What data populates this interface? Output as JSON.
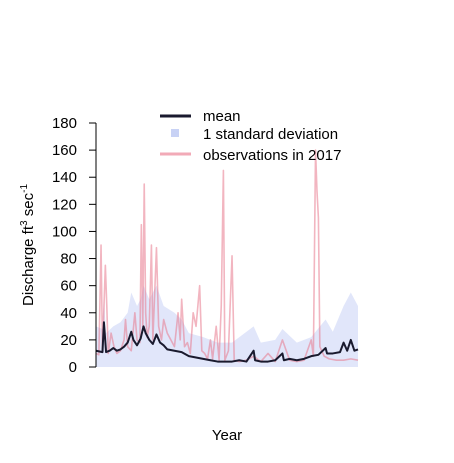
{
  "chart_data": {
    "type": "line",
    "xlabel": "Year",
    "ylabel_main": "Discharge ft",
    "ylabel_sup1": "3",
    "ylabel_mid": " sec",
    "ylabel_sup2": "-1",
    "ylim": [
      0,
      180
    ],
    "yticks": [
      "0",
      "20",
      "40",
      "60",
      "80",
      "100",
      "120",
      "140",
      "160",
      "180"
    ],
    "grid": false,
    "legend_position": "top",
    "x_range": [
      1,
      365
    ],
    "series": [
      {
        "name": "mean",
        "color": "#1a1a2e",
        "points": [
          [
            1,
            12
          ],
          [
            10,
            11
          ],
          [
            12,
            33
          ],
          [
            15,
            11
          ],
          [
            20,
            12
          ],
          [
            25,
            14
          ],
          [
            30,
            12
          ],
          [
            35,
            13
          ],
          [
            40,
            15
          ],
          [
            45,
            18
          ],
          [
            50,
            26
          ],
          [
            53,
            20
          ],
          [
            58,
            16
          ],
          [
            60,
            18
          ],
          [
            63,
            21
          ],
          [
            67,
            30
          ],
          [
            70,
            25
          ],
          [
            75,
            20
          ],
          [
            80,
            17
          ],
          [
            85,
            24
          ],
          [
            90,
            18
          ],
          [
            95,
            16
          ],
          [
            100,
            13
          ],
          [
            110,
            12
          ],
          [
            120,
            11
          ],
          [
            130,
            8
          ],
          [
            140,
            7
          ],
          [
            150,
            6
          ],
          [
            160,
            5
          ],
          [
            170,
            4
          ],
          [
            180,
            4
          ],
          [
            190,
            4
          ],
          [
            200,
            5
          ],
          [
            210,
            4
          ],
          [
            220,
            12
          ],
          [
            222,
            5
          ],
          [
            230,
            4
          ],
          [
            240,
            4
          ],
          [
            250,
            5
          ],
          [
            260,
            10
          ],
          [
            262,
            5
          ],
          [
            270,
            6
          ],
          [
            280,
            5
          ],
          [
            290,
            6
          ],
          [
            300,
            8
          ],
          [
            310,
            9
          ],
          [
            320,
            14
          ],
          [
            322,
            10
          ],
          [
            330,
            10
          ],
          [
            340,
            11
          ],
          [
            345,
            18
          ],
          [
            350,
            12
          ],
          [
            355,
            20
          ],
          [
            360,
            12
          ],
          [
            365,
            13
          ]
        ]
      },
      {
        "name": "1 standard deviation",
        "color": "#c8d2f5",
        "upper": [
          [
            1,
            30
          ],
          [
            10,
            28
          ],
          [
            12,
            50
          ],
          [
            15,
            25
          ],
          [
            25,
            30
          ],
          [
            35,
            33
          ],
          [
            45,
            40
          ],
          [
            50,
            55
          ],
          [
            58,
            45
          ],
          [
            63,
            50
          ],
          [
            67,
            60
          ],
          [
            75,
            50
          ],
          [
            85,
            60
          ],
          [
            95,
            45
          ],
          [
            110,
            40
          ],
          [
            120,
            35
          ],
          [
            130,
            25
          ],
          [
            150,
            22
          ],
          [
            170,
            18
          ],
          [
            190,
            18
          ],
          [
            220,
            30
          ],
          [
            230,
            18
          ],
          [
            250,
            20
          ],
          [
            260,
            28
          ],
          [
            280,
            18
          ],
          [
            300,
            22
          ],
          [
            320,
            35
          ],
          [
            330,
            26
          ],
          [
            345,
            45
          ],
          [
            355,
            55
          ],
          [
            365,
            45
          ]
        ],
        "lower": [
          [
            1,
            0
          ],
          [
            365,
            0
          ]
        ]
      },
      {
        "name": "observations in 2017",
        "color": "#e8788c",
        "points": [
          [
            1,
            10
          ],
          [
            5,
            9
          ],
          [
            8,
            90
          ],
          [
            10,
            12
          ],
          [
            14,
            75
          ],
          [
            16,
            45
          ],
          [
            18,
            10
          ],
          [
            22,
            25
          ],
          [
            26,
            15
          ],
          [
            30,
            10
          ],
          [
            35,
            12
          ],
          [
            40,
            20
          ],
          [
            42,
            35
          ],
          [
            45,
            15
          ],
          [
            50,
            12
          ],
          [
            55,
            40
          ],
          [
            58,
            20
          ],
          [
            62,
            18
          ],
          [
            64,
            105
          ],
          [
            66,
            30
          ],
          [
            68,
            135
          ],
          [
            70,
            40
          ],
          [
            72,
            22
          ],
          [
            75,
            30
          ],
          [
            78,
            90
          ],
          [
            80,
            20
          ],
          [
            85,
            88
          ],
          [
            88,
            30
          ],
          [
            92,
            20
          ],
          [
            95,
            35
          ],
          [
            100,
            25
          ],
          [
            105,
            20
          ],
          [
            110,
            15
          ],
          [
            115,
            40
          ],
          [
            118,
            20
          ],
          [
            120,
            50
          ],
          [
            124,
            15
          ],
          [
            128,
            18
          ],
          [
            132,
            10
          ],
          [
            136,
            40
          ],
          [
            140,
            30
          ],
          [
            145,
            60
          ],
          [
            148,
            12
          ],
          [
            152,
            10
          ],
          [
            156,
            6
          ],
          [
            160,
            20
          ],
          [
            163,
            6
          ],
          [
            168,
            30
          ],
          [
            172,
            5
          ],
          [
            175,
            45
          ],
          [
            178,
            145
          ],
          [
            180,
            5
          ],
          [
            185,
            12
          ],
          [
            190,
            82
          ],
          [
            193,
            5
          ],
          [
            200,
            4
          ],
          [
            210,
            5
          ],
          [
            220,
            8
          ],
          [
            230,
            4
          ],
          [
            240,
            10
          ],
          [
            250,
            4
          ],
          [
            260,
            20
          ],
          [
            270,
            5
          ],
          [
            280,
            4
          ],
          [
            290,
            5
          ],
          [
            300,
            20
          ],
          [
            303,
            8
          ],
          [
            306,
            160
          ],
          [
            308,
            130
          ],
          [
            310,
            110
          ],
          [
            312,
            15
          ],
          [
            318,
            8
          ],
          [
            325,
            6
          ],
          [
            335,
            5
          ],
          [
            345,
            5
          ],
          [
            355,
            6
          ],
          [
            365,
            5
          ]
        ]
      }
    ]
  }
}
